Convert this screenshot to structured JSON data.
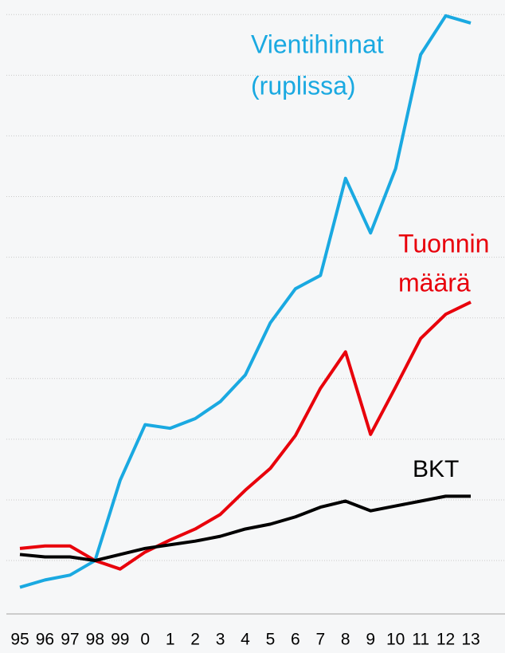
{
  "chart_data": {
    "type": "line",
    "categories": [
      "95",
      "96",
      "97",
      "98",
      "99",
      "0",
      "1",
      "2",
      "3",
      "4",
      "5",
      "6",
      "7",
      "8",
      "9",
      "10",
      "11",
      "12",
      "13"
    ],
    "series": [
      {
        "label": [
          "Vientihinnat",
          "(ruplissa)"
        ],
        "color": "#1aa9e1",
        "values": [
          78,
          84,
          88,
          100,
          166,
          212,
          209,
          217,
          231,
          253,
          296,
          324,
          335,
          415,
          370,
          423,
          517,
          549,
          543
        ]
      },
      {
        "label": [
          "Tuonnin",
          "määrä"
        ],
        "color": "#e8000b",
        "values": [
          110,
          112,
          112,
          100,
          93,
          107,
          117,
          126,
          138,
          158,
          176,
          203,
          242,
          272,
          204,
          243,
          283,
          303,
          313
        ]
      },
      {
        "label": [
          "BKT"
        ],
        "color": "#000000",
        "values": [
          105,
          103,
          103,
          100,
          105,
          110,
          113,
          116,
          120,
          126,
          130,
          136,
          144,
          149,
          141,
          145,
          149,
          153,
          153
        ]
      }
    ],
    "ylim": [
      56,
      562
    ],
    "yticks": [
      100,
      150,
      200,
      250,
      300,
      350,
      400,
      450,
      500,
      550
    ],
    "grid": true
  }
}
